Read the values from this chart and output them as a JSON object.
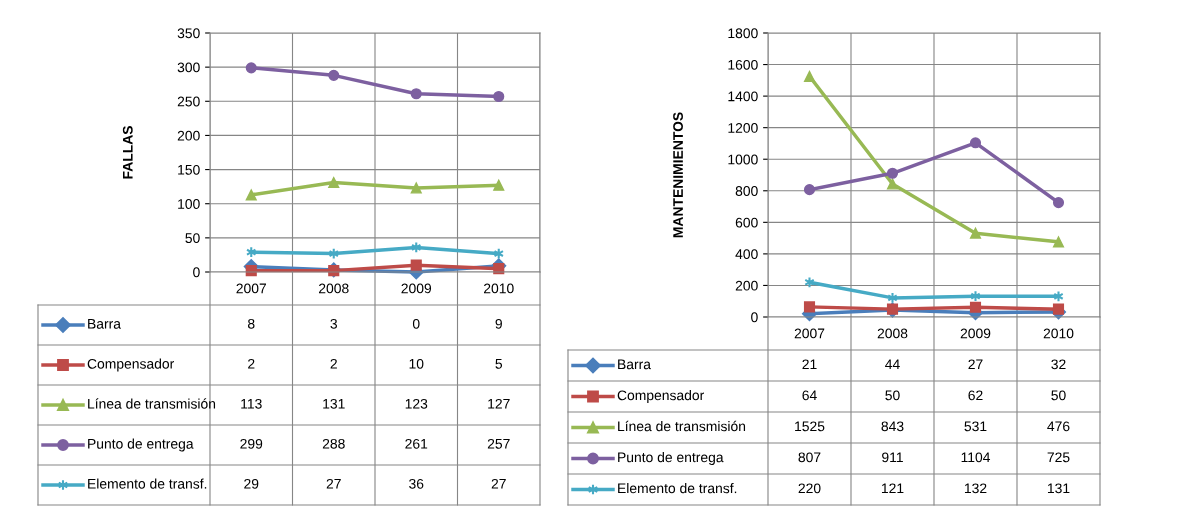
{
  "chart_data": [
    {
      "type": "line",
      "ylabel": "FALLAS",
      "categories": [
        "2007",
        "2008",
        "2009",
        "2010"
      ],
      "ylim": [
        0,
        350
      ],
      "yticks": [
        0,
        50,
        100,
        150,
        200,
        250,
        300,
        350
      ],
      "grid": true,
      "legend": "bottom",
      "data_labels": true,
      "series": [
        {
          "name": "Barra",
          "color": "#4a7ebb",
          "marker": "diamond",
          "values": [
            8,
            3,
            0,
            9
          ]
        },
        {
          "name": "Compensador",
          "color": "#be4b48",
          "marker": "square",
          "values": [
            2,
            2,
            10,
            5
          ]
        },
        {
          "name": "Línea de transmisión",
          "color": "#98b954",
          "marker": "triangle",
          "values": [
            113,
            131,
            123,
            127
          ]
        },
        {
          "name": "Punto de entrega",
          "color": "#7d60a0",
          "marker": "circle",
          "values": [
            299,
            288,
            261,
            257
          ]
        },
        {
          "name": "Elemento de transf.",
          "color": "#46aac5",
          "marker": "cross",
          "values": [
            29,
            27,
            36,
            27
          ]
        }
      ]
    },
    {
      "type": "line",
      "ylabel": "MANTENIMIENTOS",
      "categories": [
        "2007",
        "2008",
        "2009",
        "2010"
      ],
      "ylim": [
        0,
        1800
      ],
      "yticks": [
        0,
        200,
        400,
        600,
        800,
        1000,
        1200,
        1400,
        1600,
        1800
      ],
      "grid": true,
      "legend": "bottom",
      "data_labels": true,
      "series": [
        {
          "name": "Barra",
          "color": "#4a7ebb",
          "marker": "diamond",
          "values": [
            21,
            44,
            27,
            32
          ]
        },
        {
          "name": "Compensador",
          "color": "#be4b48",
          "marker": "square",
          "values": [
            64,
            50,
            62,
            50
          ]
        },
        {
          "name": "Línea de transmisión",
          "color": "#98b954",
          "marker": "triangle",
          "values": [
            1525,
            843,
            531,
            476
          ]
        },
        {
          "name": "Punto de entrega",
          "color": "#7d60a0",
          "marker": "circle",
          "values": [
            807,
            911,
            1104,
            725
          ]
        },
        {
          "name": "Elemento de transf.",
          "color": "#46aac5",
          "marker": "cross",
          "values": [
            220,
            121,
            132,
            131
          ]
        }
      ]
    }
  ]
}
